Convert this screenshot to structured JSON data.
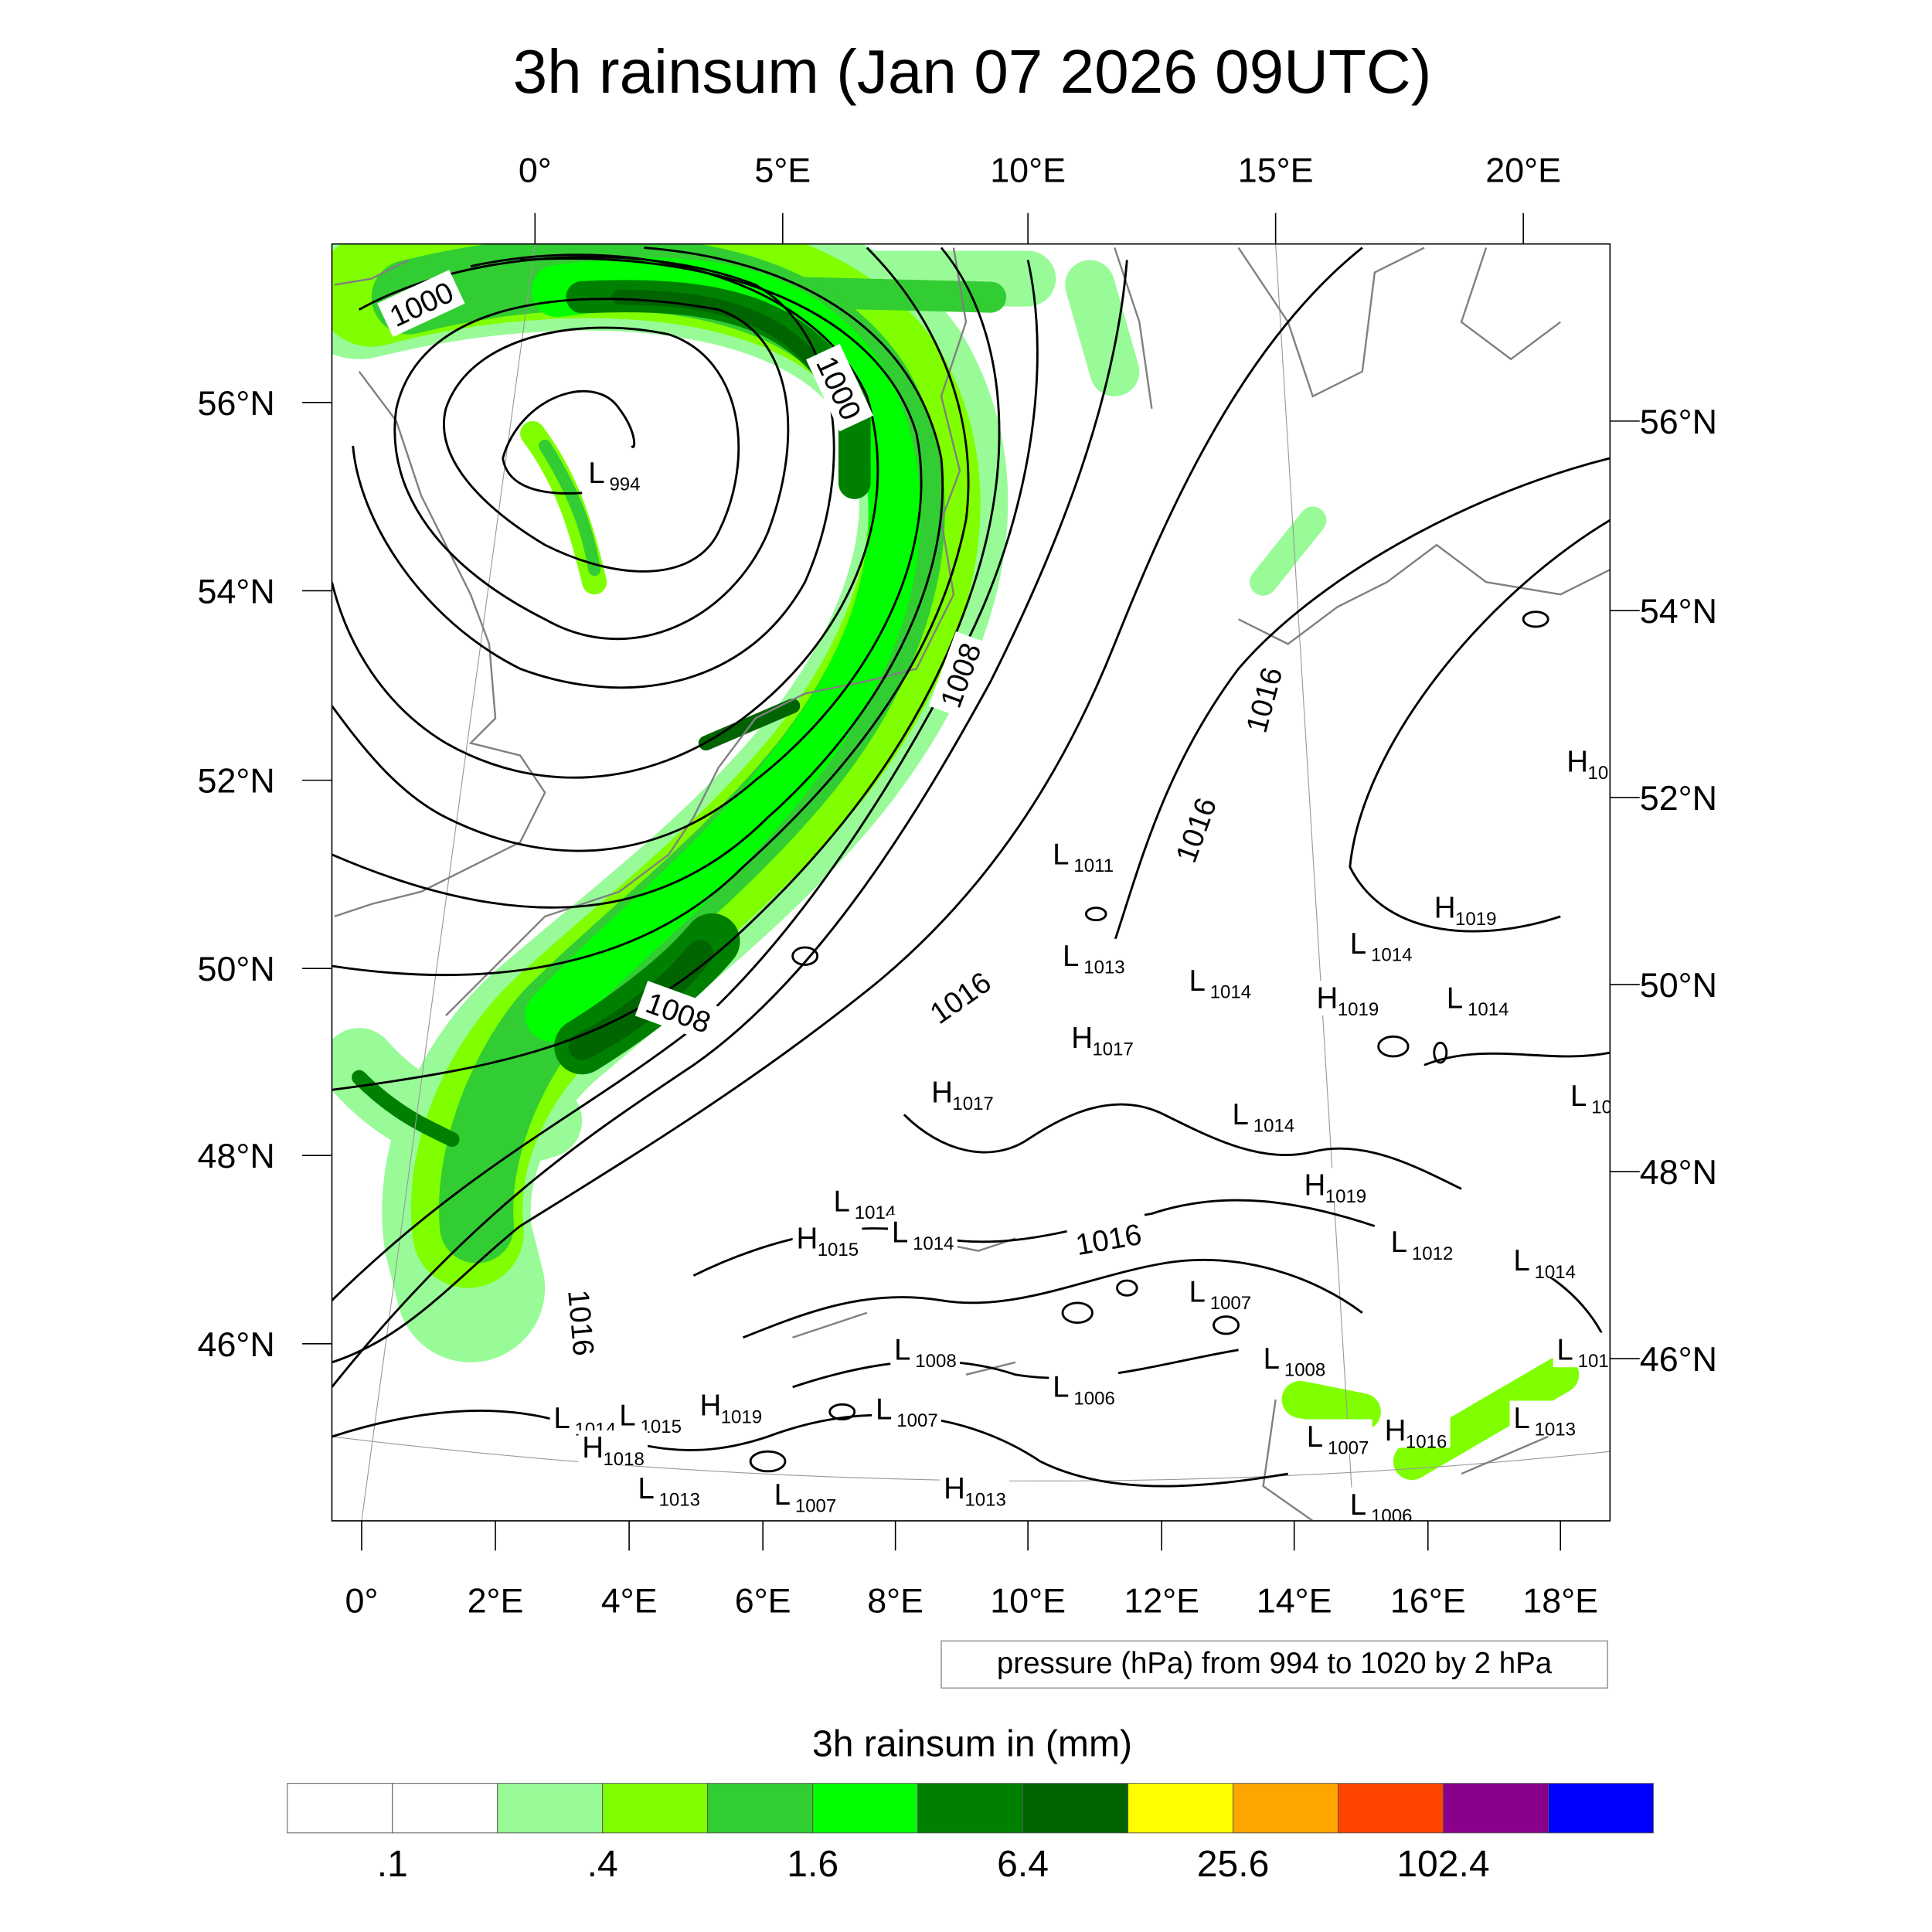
{
  "title": "3h rainsum (Jan 07 2026 09UTC)",
  "top_lon_labels": [
    "0°",
    "5°E",
    "10°E",
    "15°E",
    "20°E"
  ],
  "bottom_lon_labels": [
    "0°",
    "2°E",
    "4°E",
    "6°E",
    "8°E",
    "10°E",
    "12°E",
    "14°E",
    "16°E",
    "18°E"
  ],
  "left_lat_labels": [
    "56°N",
    "54°N",
    "52°N",
    "50°N",
    "48°N",
    "46°N"
  ],
  "right_lat_labels": [
    "56°N",
    "54°N",
    "52°N",
    "50°N",
    "48°N",
    "46°N"
  ],
  "contour_labels": [
    "1000",
    "1000",
    "1008",
    "1008",
    "1016",
    "1016",
    "1016",
    "1016",
    "1016"
  ],
  "pressure_centers": [
    {
      "t": "L",
      "v": "994"
    },
    {
      "t": "L",
      "v": "1011"
    },
    {
      "t": "L",
      "v": "1013"
    },
    {
      "t": "L",
      "v": "1014"
    },
    {
      "t": "H",
      "v": "1017"
    },
    {
      "t": "H",
      "v": "1017"
    },
    {
      "t": "L",
      "v": "1014"
    },
    {
      "t": "L",
      "v": "1014"
    },
    {
      "t": "H",
      "v": "1019"
    },
    {
      "t": "L",
      "v": "1014"
    },
    {
      "t": "H",
      "v": "1019"
    },
    {
      "t": "H",
      "v": "1019"
    },
    {
      "t": "L",
      "v": "1012"
    },
    {
      "t": "L",
      "v": "1014"
    },
    {
      "t": "L",
      "v": "1007"
    },
    {
      "t": "L",
      "v": "1008"
    },
    {
      "t": "L",
      "v": "1006"
    },
    {
      "t": "L",
      "v": "1008"
    },
    {
      "t": "L",
      "v": "1007"
    },
    {
      "t": "H",
      "v": "1019"
    },
    {
      "t": "L",
      "v": "1015"
    },
    {
      "t": "L",
      "v": "1014"
    },
    {
      "t": "L",
      "v": "1013"
    },
    {
      "t": "L",
      "v": "1007"
    },
    {
      "t": "H",
      "v": "1013"
    },
    {
      "t": "L",
      "v": "1014"
    },
    {
      "t": "H",
      "v": "1015"
    },
    {
      "t": "L",
      "v": "1007"
    },
    {
      "t": "H",
      "v": "1016"
    },
    {
      "t": "L",
      "v": "1013"
    },
    {
      "t": "L",
      "v": "1006"
    },
    {
      "t": "H",
      "v": "10"
    },
    {
      "t": "L",
      "v": "10"
    },
    {
      "t": "L",
      "v": "101"
    },
    {
      "t": "H",
      "v": "1018"
    },
    {
      "t": "L",
      "v": "1014"
    }
  ],
  "legend_note": "pressure (hPa) from 994 to 1020 by 2 hPa",
  "colorbar": {
    "title": "3h rainsum in (mm)",
    "colors": [
      "#ffffff",
      "#ffffff",
      "#98fb98",
      "#7fff00",
      "#32cd32",
      "#00ff00",
      "#008000",
      "#006400",
      "#ffff00",
      "#ffa500",
      "#ff4500",
      "#8b008b",
      "#0000ff"
    ],
    "labels": [
      ".1",
      ".4",
      "1.6",
      "6.4",
      "25.6",
      "102.4"
    ]
  }
}
